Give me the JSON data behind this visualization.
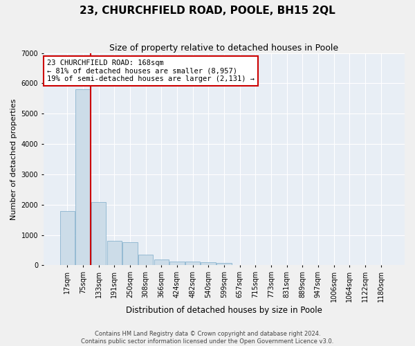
{
  "title": "23, CHURCHFIELD ROAD, POOLE, BH15 2QL",
  "subtitle": "Size of property relative to detached houses in Poole",
  "xlabel": "Distribution of detached houses by size in Poole",
  "ylabel": "Number of detached properties",
  "bar_color": "#ccdce8",
  "bar_edge_color": "#7aaac8",
  "bin_labels": [
    "17sqm",
    "75sqm",
    "133sqm",
    "191sqm",
    "250sqm",
    "308sqm",
    "366sqm",
    "424sqm",
    "482sqm",
    "540sqm",
    "599sqm",
    "657sqm",
    "715sqm",
    "773sqm",
    "831sqm",
    "889sqm",
    "947sqm",
    "1006sqm",
    "1064sqm",
    "1122sqm",
    "1180sqm"
  ],
  "bar_heights": [
    1780,
    5800,
    2090,
    800,
    760,
    340,
    190,
    115,
    110,
    95,
    75,
    0,
    0,
    0,
    0,
    0,
    0,
    0,
    0,
    0,
    0
  ],
  "red_line_x": 2,
  "red_line_color": "#cc0000",
  "annotation_text": "23 CHURCHFIELD ROAD: 168sqm\n← 81% of detached houses are smaller (8,957)\n19% of semi-detached houses are larger (2,131) →",
  "ylim": [
    0,
    7000
  ],
  "yticks": [
    0,
    1000,
    2000,
    3000,
    4000,
    5000,
    6000,
    7000
  ],
  "footer_line1": "Contains HM Land Registry data © Crown copyright and database right 2024.",
  "footer_line2": "Contains public sector information licensed under the Open Government Licence v3.0.",
  "background_color": "#e8eef5",
  "grid_color": "#ffffff",
  "fig_background": "#f0f0f0",
  "title_fontsize": 11,
  "subtitle_fontsize": 9,
  "tick_fontsize": 7,
  "ylabel_fontsize": 8,
  "xlabel_fontsize": 8.5,
  "footer_fontsize": 6,
  "annotation_fontsize": 7.5
}
